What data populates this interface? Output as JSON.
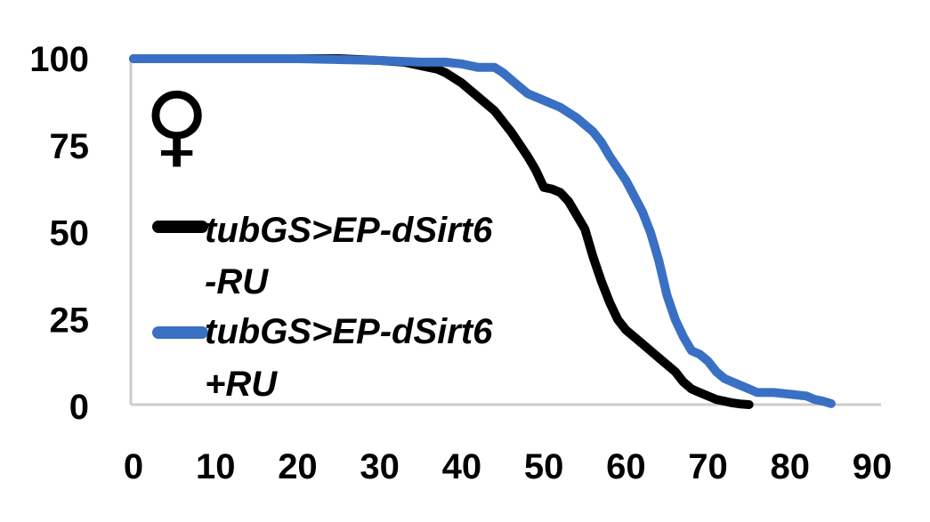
{
  "chart_data": {
    "type": "line",
    "title": "",
    "xlabel": "",
    "ylabel": "",
    "xlim": [
      0,
      90
    ],
    "ylim": [
      0,
      100
    ],
    "x_ticks": [
      0,
      10,
      20,
      30,
      40,
      50,
      60,
      70,
      80,
      90
    ],
    "y_ticks": [
      0,
      25,
      50,
      75,
      100
    ],
    "grid": false,
    "legend_position": "left-inside",
    "annotation": "♀",
    "series": [
      {
        "name": "tubGS>EP-dSirt6",
        "name_line2": "-RU",
        "color": "#000000",
        "points": [
          [
            0,
            100
          ],
          [
            5,
            100
          ],
          [
            10,
            100
          ],
          [
            15,
            100
          ],
          [
            20,
            100
          ],
          [
            25,
            100
          ],
          [
            30,
            99.5
          ],
          [
            33,
            99
          ],
          [
            35,
            98
          ],
          [
            37,
            97
          ],
          [
            38,
            96
          ],
          [
            40,
            93
          ],
          [
            42,
            89
          ],
          [
            44,
            85
          ],
          [
            46,
            79
          ],
          [
            48,
            72
          ],
          [
            49,
            68
          ],
          [
            50,
            63
          ],
          [
            51,
            62.5
          ],
          [
            52,
            61.5
          ],
          [
            53,
            59
          ],
          [
            54,
            55
          ],
          [
            55,
            51
          ],
          [
            56,
            43
          ],
          [
            57,
            36
          ],
          [
            58,
            30
          ],
          [
            59,
            25
          ],
          [
            60,
            22
          ],
          [
            62,
            18
          ],
          [
            64,
            14
          ],
          [
            66,
            10
          ],
          [
            67,
            7
          ],
          [
            68,
            5
          ],
          [
            69,
            4
          ],
          [
            70,
            3
          ],
          [
            71,
            2
          ],
          [
            72,
            1.5
          ],
          [
            73,
            1
          ],
          [
            74,
            0.7
          ],
          [
            75,
            0.5
          ]
        ]
      },
      {
        "name": "tubGS>EP-dSirt6",
        "name_line2": "+RU",
        "color": "#3a70c4",
        "points": [
          [
            0,
            100
          ],
          [
            10,
            100
          ],
          [
            20,
            100
          ],
          [
            30,
            99.5
          ],
          [
            35,
            99
          ],
          [
            38,
            99
          ],
          [
            40,
            98.5
          ],
          [
            42,
            97.5
          ],
          [
            44,
            97.5
          ],
          [
            45,
            96
          ],
          [
            46,
            94
          ],
          [
            47,
            92
          ],
          [
            48,
            90
          ],
          [
            50,
            88
          ],
          [
            52,
            86
          ],
          [
            54,
            83
          ],
          [
            55,
            81
          ],
          [
            56,
            79
          ],
          [
            57,
            76
          ],
          [
            58,
            72
          ],
          [
            60,
            65
          ],
          [
            62,
            56
          ],
          [
            63,
            50
          ],
          [
            64,
            42
          ],
          [
            65,
            32
          ],
          [
            66,
            25
          ],
          [
            67,
            20
          ],
          [
            68,
            16
          ],
          [
            69,
            15
          ],
          [
            70,
            13
          ],
          [
            71,
            10
          ],
          [
            72,
            8
          ],
          [
            73,
            7
          ],
          [
            74,
            6
          ],
          [
            75,
            5
          ],
          [
            76,
            4
          ],
          [
            77,
            4
          ],
          [
            78,
            4
          ],
          [
            80,
            3.5
          ],
          [
            82,
            3
          ],
          [
            83,
            2
          ],
          [
            84,
            1.5
          ],
          [
            85,
            0.8
          ]
        ]
      }
    ]
  }
}
